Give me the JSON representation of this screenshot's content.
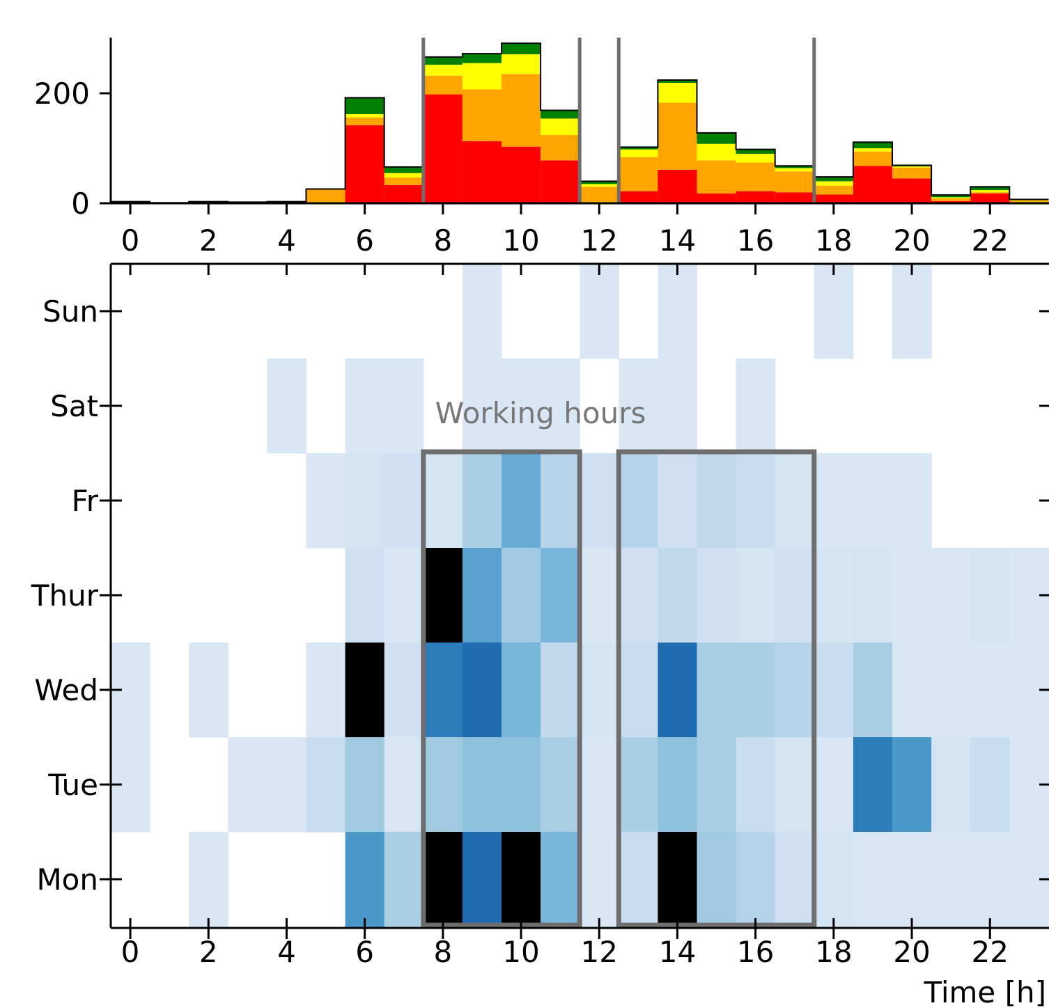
{
  "chart_data": [
    {
      "type": "bar",
      "stacked": true,
      "x": [
        0,
        1,
        2,
        3,
        4,
        5,
        6,
        7,
        8,
        9,
        10,
        11,
        12,
        13,
        14,
        15,
        16,
        17,
        18,
        19,
        20,
        21,
        22,
        23
      ],
      "ylim": [
        0,
        300
      ],
      "yticks": [
        0,
        200
      ],
      "xticks": [
        "0",
        "2",
        "4",
        "6",
        "8",
        "10",
        "12",
        "14",
        "16",
        "18",
        "20",
        "22"
      ],
      "colors": {
        "red": "#ff0000",
        "orange": "#ffa500",
        "yellow": "#ffff00",
        "green": "#008000"
      },
      "series": [
        {
          "values": [
            0,
            0,
            0,
            0,
            0,
            0,
            142,
            33,
            198,
            113,
            103,
            78,
            0,
            22,
            61,
            18,
            22,
            20,
            16,
            68,
            45,
            4,
            18,
            2
          ]
        },
        {
          "values": [
            0,
            0,
            0,
            0,
            0,
            25,
            14,
            14,
            34,
            94,
            132,
            46,
            30,
            62,
            122,
            60,
            52,
            38,
            16,
            26,
            20,
            5,
            2,
            3
          ]
        },
        {
          "values": [
            0,
            0,
            0,
            0,
            0,
            0,
            6,
            8,
            20,
            48,
            36,
            30,
            5,
            14,
            36,
            30,
            16,
            6,
            8,
            6,
            2,
            2,
            4,
            1
          ]
        },
        {
          "values": [
            3,
            1,
            3,
            2,
            3,
            1,
            30,
            11,
            14,
            17,
            20,
            15,
            5,
            4,
            5,
            20,
            8,
            4,
            8,
            11,
            2,
            4,
            6,
            1
          ]
        }
      ],
      "vlines": [
        7.5,
        11.5,
        12.5,
        17.5
      ]
    },
    {
      "type": "heatmap",
      "x": [
        0,
        1,
        2,
        3,
        4,
        5,
        6,
        7,
        8,
        9,
        10,
        11,
        12,
        13,
        14,
        15,
        16,
        17,
        18,
        19,
        20,
        21,
        22,
        23
      ],
      "rows": [
        "Sun",
        "Sat",
        "Fr",
        "Thur",
        "Wed",
        "Tue",
        "Mon"
      ],
      "xticks": [
        "0",
        "2",
        "4",
        "6",
        "8",
        "10",
        "12",
        "14",
        "16",
        "18",
        "20",
        "22"
      ],
      "xlabel": "Time [h]",
      "annotation": "Working hours",
      "boxes": [
        [
          7.5,
          11.5
        ],
        [
          12.5,
          17.5
        ]
      ],
      "values": [
        [
          0,
          0,
          0,
          0,
          0,
          0,
          0,
          0,
          0,
          1,
          0,
          0,
          1,
          0,
          1,
          0,
          0,
          0,
          1,
          0,
          1,
          0,
          0,
          0
        ],
        [
          0,
          0,
          0,
          0,
          1,
          0,
          1,
          1,
          0,
          1,
          1,
          1,
          0,
          1,
          1,
          0,
          1,
          0,
          0,
          0,
          0,
          0,
          0,
          0
        ],
        [
          0,
          0,
          0,
          0,
          0,
          1,
          2,
          3,
          2,
          7,
          11,
          6,
          3,
          6,
          3,
          5,
          4,
          2,
          1,
          1,
          1,
          0,
          0,
          0
        ],
        [
          0,
          0,
          0,
          0,
          0,
          0,
          3,
          1,
          20,
          12,
          8,
          10,
          1,
          3,
          5,
          3,
          2,
          3,
          2,
          2,
          1,
          1,
          2,
          1
        ],
        [
          1,
          0,
          1,
          0,
          0,
          1,
          20,
          3,
          15,
          16,
          10,
          5,
          2,
          4,
          16,
          7,
          7,
          6,
          4,
          7,
          1,
          1,
          1,
          1
        ],
        [
          1,
          0,
          0,
          1,
          1,
          4,
          8,
          1,
          8,
          9,
          9,
          7,
          1,
          7,
          9,
          7,
          4,
          2,
          1,
          15,
          13,
          2,
          4,
          1
        ],
        [
          0,
          0,
          1,
          0,
          0,
          0,
          13,
          7,
          20,
          16,
          20,
          10,
          1,
          4,
          20,
          8,
          6,
          3,
          2,
          1,
          1,
          1,
          1,
          1
        ]
      ]
    }
  ]
}
